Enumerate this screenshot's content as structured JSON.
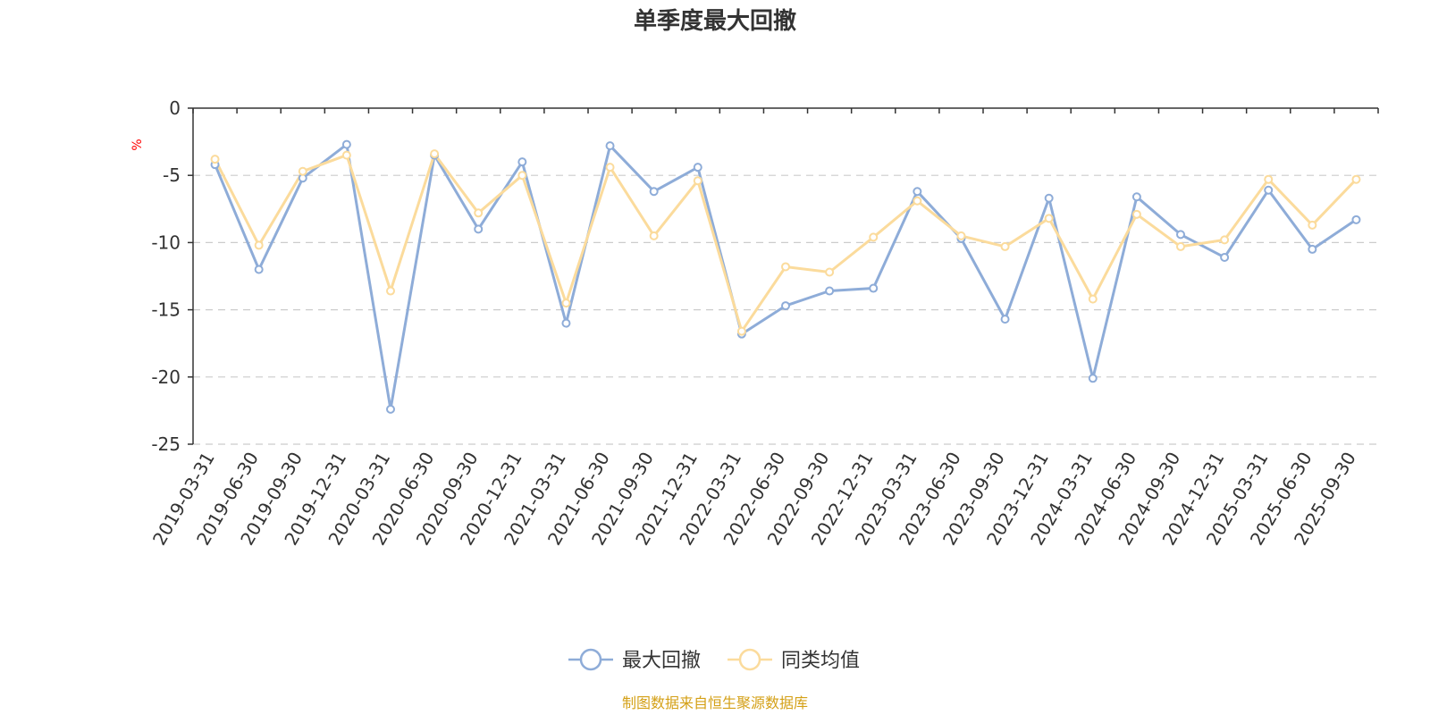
{
  "chart_data": {
    "type": "line",
    "title": "单季度最大回撤",
    "ylabel": "%",
    "ylim": [
      -25,
      0
    ],
    "yticks": [
      0,
      -5,
      -10,
      -15,
      -20,
      -25
    ],
    "grid": true,
    "legend_position": "bottom-center",
    "x": [
      "2019-03-31",
      "2019-06-30",
      "2019-09-30",
      "2019-12-31",
      "2020-03-31",
      "2020-06-30",
      "2020-09-30",
      "2020-12-31",
      "2021-03-31",
      "2021-06-30",
      "2021-09-30",
      "2021-12-31",
      "2022-03-31",
      "2022-06-30",
      "2022-09-30",
      "2022-12-31",
      "2023-03-31",
      "2023-06-30",
      "2023-09-30",
      "2023-12-31",
      "2024-03-31",
      "2024-06-30",
      "2024-09-30",
      "2024-12-31",
      "2025-03-31",
      "2025-06-30",
      "2025-09-30"
    ],
    "series": [
      {
        "name": "最大回撤",
        "color": "#8eacd8",
        "values": [
          -4.2,
          -12.0,
          -5.2,
          -2.7,
          -22.4,
          -3.5,
          -9.0,
          -4.0,
          -16.0,
          -2.8,
          -6.2,
          -4.4,
          -16.8,
          -14.7,
          -13.6,
          -13.4,
          -6.2,
          -9.7,
          -15.7,
          -6.7,
          -20.1,
          -6.6,
          -9.4,
          -11.1,
          -6.1,
          -10.5,
          -8.3
        ]
      },
      {
        "name": "同类均值",
        "color": "#fbdb9c",
        "values": [
          -3.8,
          -10.2,
          -4.7,
          -3.5,
          -13.6,
          -3.4,
          -7.8,
          -5.0,
          -14.5,
          -4.4,
          -9.5,
          -5.4,
          -16.6,
          -11.8,
          -12.2,
          -9.6,
          -6.9,
          -9.5,
          -10.3,
          -8.2,
          -14.2,
          -7.9,
          -10.3,
          -9.8,
          -5.3,
          -8.7,
          -5.3
        ]
      }
    ]
  },
  "source_text": "制图数据来自恒生聚源数据库",
  "colors": {
    "axis": "#333333",
    "grid": "#cccccc",
    "unit": "#ff0000",
    "source": "#d4a017"
  }
}
